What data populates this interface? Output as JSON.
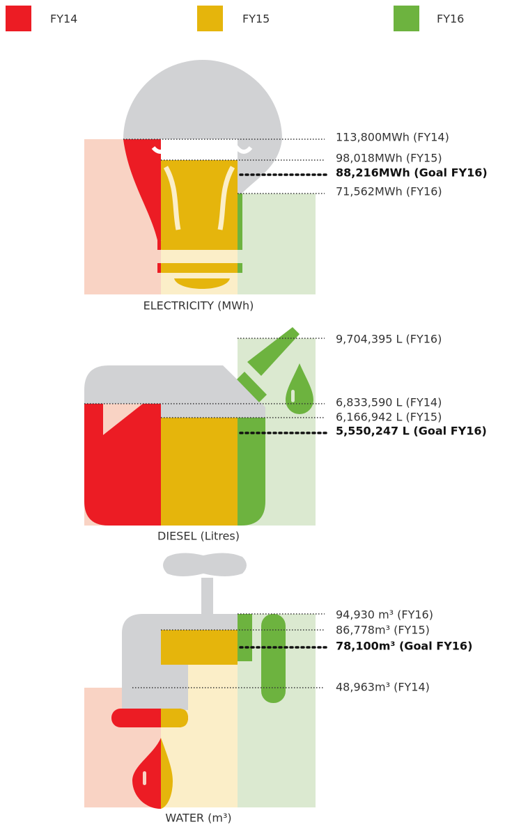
{
  "legend": [
    {
      "label": "FY14",
      "color": "#ec1c24"
    },
    {
      "label": "FY15",
      "color": "#e5b50c"
    },
    {
      "label": "FY16",
      "color": "#6db33f"
    }
  ],
  "panels": [
    {
      "title": "ELECTRICITY (MWh)",
      "annotations": [
        {
          "text": "113,800MWh (FY14)"
        },
        {
          "text": "98,018MWh (FY15)"
        },
        {
          "text": "88,216MWh (Goal FY16)"
        },
        {
          "text": "71,562MWh (FY16)"
        }
      ]
    },
    {
      "title": "DIESEL (Litres)",
      "annotations": [
        {
          "text": "9,704,395 L (FY16)"
        },
        {
          "text": "6,833,590 L (FY14)"
        },
        {
          "text": "6,166,942 L (FY15)"
        },
        {
          "text": "5,550,247 L (Goal FY16)"
        }
      ]
    },
    {
      "title": "WATER (m³)",
      "annotations": [
        {
          "text": "94,930 m³ (FY16)"
        },
        {
          "text": "86,778m³ (FY15)"
        },
        {
          "text": "78,100m³ (Goal FY16)"
        },
        {
          "text": "48,963m³ (FY14)"
        }
      ]
    }
  ]
}
